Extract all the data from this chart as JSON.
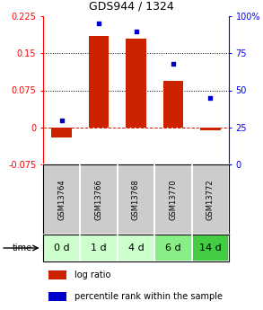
{
  "title": "GDS944 / 1324",
  "categories": [
    "GSM13764",
    "GSM13766",
    "GSM13768",
    "GSM13770",
    "GSM13772"
  ],
  "time_labels": [
    "0 d",
    "1 d",
    "4 d",
    "6 d",
    "14 d"
  ],
  "log_ratio": [
    -0.02,
    0.185,
    0.18,
    0.095,
    -0.005
  ],
  "percentile_rank": [
    30,
    95,
    90,
    68,
    45
  ],
  "bar_color": "#cc2200",
  "dot_color": "#0000cc",
  "ylim_left": [
    -0.075,
    0.225
  ],
  "ylim_right": [
    0,
    100
  ],
  "yticks_left": [
    -0.075,
    0,
    0.075,
    0.15,
    0.225
  ],
  "yticks_right": [
    0,
    25,
    50,
    75,
    100
  ],
  "ytick_labels_left": [
    "-0.075",
    "0",
    "0.075",
    "0.15",
    "0.225"
  ],
  "ytick_labels_right": [
    "0",
    "25",
    "50",
    "75",
    "100%"
  ],
  "hline_y": [
    0.075,
    0.15
  ],
  "zero_line_y": 0,
  "gsm_bg": "#cccccc",
  "time_bg_colors": [
    "#ccffcc",
    "#ccffcc",
    "#ccffcc",
    "#88ee88",
    "#44cc44"
  ],
  "title_fontsize": 9,
  "tick_fontsize": 7,
  "label_fontsize": 7,
  "gsm_fontsize": 6,
  "time_fontsize": 8,
  "legend_fontsize": 7,
  "bar_width": 0.55
}
